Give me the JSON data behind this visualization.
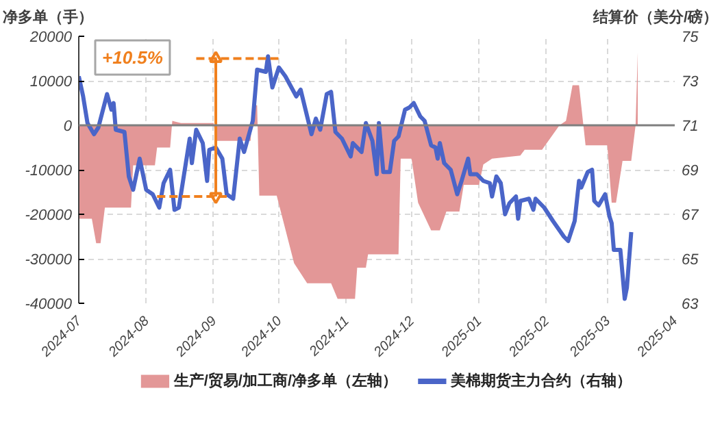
{
  "chart_data": {
    "type": "area",
    "ylabel": "净多单（手）",
    "y2label": "结算价（美分/磅）",
    "annotations": [
      "+10.5%"
    ],
    "xlim": [
      "2024-07",
      "2025-04"
    ],
    "xticks": [
      "2024-07",
      "2024-08",
      "2024-09",
      "2024-10",
      "2024-11",
      "2024-12",
      "2025-01",
      "2025-02",
      "2025-03",
      "2025-04"
    ],
    "ylim": [
      -40000,
      20000
    ],
    "yticks": [
      -40000,
      -30000,
      -20000,
      -10000,
      0,
      10000,
      20000
    ],
    "y2lim": [
      63,
      75
    ],
    "y2ticks": [
      63,
      65,
      67,
      69,
      71,
      73,
      75
    ],
    "grid": true,
    "legend": "bottom",
    "ref_lines": [
      {
        "axis": "y",
        "value": 0,
        "color": "#7f7f7f"
      }
    ],
    "series": [
      {
        "name": "生产/贸易/加工商/净多单（左轴）",
        "color": "#e39797",
        "x": [
          "2024-07-01",
          "2024-07-07",
          "2024-07-09",
          "2024-07-11",
          "2024-07-13",
          "2024-07-25",
          "2024-07-26",
          "2024-08-05",
          "2024-08-06",
          "2024-08-12",
          "2024-08-13",
          "2024-08-17",
          "2024-08-22",
          "2024-09-01",
          "2024-09-02",
          "2024-09-18",
          "2024-09-19",
          "2024-09-21",
          "2024-09-22",
          "2024-09-30",
          "2024-10-08",
          "2024-10-14",
          "2024-10-25",
          "2024-10-28",
          "2024-11-05",
          "2024-11-06",
          "2024-11-10",
          "2024-11-11",
          "2024-11-25",
          "2024-11-26",
          "2024-12-01",
          "2024-12-04",
          "2024-12-10",
          "2024-12-14",
          "2024-12-17",
          "2024-12-23",
          "2024-12-25",
          "2025-01-01",
          "2025-01-03",
          "2025-01-07",
          "2025-01-20",
          "2025-01-22",
          "2025-01-30",
          "2025-02-07",
          "2025-02-10",
          "2025-02-13",
          "2025-02-16",
          "2025-02-19",
          "2025-03-01",
          "2025-03-03",
          "2025-03-05",
          "2025-03-08",
          "2025-03-12",
          "2025-03-14",
          "2025-03-15"
        ],
        "values": [
          -21000,
          -21000,
          -26500,
          -26500,
          -18500,
          -18500,
          -9000,
          -9000,
          -5000,
          -5000,
          1000,
          500,
          500,
          500,
          -3500,
          -3500,
          4500,
          4500,
          -15800,
          -15800,
          -31000,
          -35500,
          -35500,
          -39000,
          -39000,
          -32000,
          -32000,
          -29000,
          -29000,
          -7500,
          -7500,
          -17400,
          -23600,
          -23600,
          -19400,
          -19400,
          -13400,
          -13400,
          -8800,
          -7500,
          -6800,
          -5500,
          -5500,
          0,
          1000,
          9000,
          9000,
          -4500,
          -4500,
          -17400,
          -17400,
          -8000,
          -8000,
          0,
          16400
        ]
      },
      {
        "name": "美棉期货主力合约（右轴）",
        "type": "line",
        "axis": "y2",
        "color": "#4a65c8",
        "x": [
          "2024-07-01",
          "2024-07-03",
          "2024-07-05",
          "2024-07-08",
          "2024-07-10",
          "2024-07-14",
          "2024-07-16",
          "2024-07-17",
          "2024-07-18",
          "2024-07-22",
          "2024-07-24",
          "2024-07-26",
          "2024-07-29",
          "2024-08-01",
          "2024-08-04",
          "2024-08-07",
          "2024-08-09",
          "2024-08-12",
          "2024-08-14",
          "2024-08-16",
          "2024-08-21",
          "2024-08-22",
          "2024-08-24",
          "2024-08-27",
          "2024-08-29",
          "2024-08-30",
          "2024-09-02",
          "2024-09-05",
          "2024-09-07",
          "2024-09-10",
          "2024-09-13",
          "2024-09-15",
          "2024-09-19",
          "2024-09-21",
          "2024-09-25",
          "2024-09-26",
          "2024-09-28",
          "2024-10-01",
          "2024-10-04",
          "2024-10-09",
          "2024-10-11",
          "2024-10-13",
          "2024-10-16",
          "2024-10-18",
          "2024-10-20",
          "2024-10-23",
          "2024-10-25",
          "2024-10-27",
          "2024-10-30",
          "2024-11-03",
          "2024-11-04",
          "2024-11-08",
          "2024-11-10",
          "2024-11-13",
          "2024-11-15",
          "2024-11-16",
          "2024-11-18",
          "2024-11-21",
          "2024-11-23",
          "2024-11-25",
          "2024-11-28",
          "2024-11-30",
          "2024-12-02",
          "2024-12-05",
          "2024-12-07",
          "2024-12-10",
          "2024-12-12",
          "2024-12-13",
          "2024-12-14",
          "2024-12-16",
          "2024-12-19",
          "2024-12-22",
          "2024-12-24",
          "2024-12-27",
          "2024-12-28",
          "2024-12-31",
          "2025-01-03",
          "2025-01-06",
          "2025-01-07",
          "2025-01-09",
          "2025-01-11",
          "2025-01-13",
          "2025-01-15",
          "2025-01-18",
          "2025-01-19",
          "2025-01-20",
          "2025-01-24",
          "2025-01-26",
          "2025-01-27",
          "2025-01-31",
          "2025-02-04",
          "2025-02-09",
          "2025-02-11",
          "2025-02-14",
          "2025-02-16",
          "2025-02-17",
          "2025-02-20",
          "2025-02-22",
          "2025-02-23",
          "2025-02-25",
          "2025-02-28",
          "2025-03-02",
          "2025-03-03",
          "2025-03-04",
          "2025-03-07",
          "2025-03-09",
          "2025-03-10",
          "2025-03-12"
        ],
        "values": [
          73.2,
          72.3,
          71.1,
          70.6,
          70.9,
          72.4,
          71.7,
          72.0,
          70.8,
          70.7,
          68.7,
          68.1,
          69.5,
          68.1,
          67.9,
          67.3,
          68.4,
          69.0,
          67.2,
          67.3,
          70.4,
          69.3,
          70.8,
          70.2,
          68.5,
          69.9,
          70.0,
          69.5,
          67.9,
          67.7,
          70.4,
          69.8,
          71.2,
          73.5,
          73.4,
          74.1,
          72.7,
          73.6,
          73.2,
          72.3,
          72.6,
          71.8,
          70.6,
          71.3,
          70.8,
          72.4,
          72.5,
          70.7,
          70.4,
          69.6,
          70.2,
          69.8,
          71.1,
          70.3,
          68.8,
          71.1,
          68.9,
          68.9,
          70.3,
          70.5,
          71.7,
          71.8,
          72.0,
          71.4,
          71.2,
          70.1,
          70.0,
          69.5,
          70.2,
          69.3,
          69.0,
          67.9,
          68.5,
          69.5,
          68.8,
          68.8,
          68.5,
          68.4,
          67.8,
          68.7,
          68.4,
          67.0,
          67.5,
          67.8,
          66.8,
          67.6,
          67.7,
          67.2,
          67.7,
          67.3,
          66.7,
          66.0,
          65.8,
          66.7,
          68.5,
          68.2,
          68.9,
          69.0,
          67.6,
          67.4,
          67.9,
          66.9,
          66.6,
          65.4,
          65.4,
          63.2,
          63.7,
          66.2
        ]
      },
      {
        "type": "line",
        "axis": "y2",
        "color": "#f0801e",
        "line_style": "dashed",
        "x": [
          "2024-08-24",
          "2024-10-01"
        ],
        "values": [
          74.0,
          74.0
        ]
      },
      {
        "type": "line",
        "axis": "y2",
        "color": "#f0801e",
        "line_style": "dashed",
        "x": [
          "2024-08-06",
          "2024-09-07"
        ],
        "values": [
          67.8,
          67.8
        ]
      },
      {
        "type": "line",
        "axis": "y2",
        "color": "#f0801e",
        "marker": "triangle",
        "x": [
          "2024-09-02",
          "2024-09-02"
        ],
        "values": [
          74.0,
          67.8
        ]
      }
    ]
  }
}
